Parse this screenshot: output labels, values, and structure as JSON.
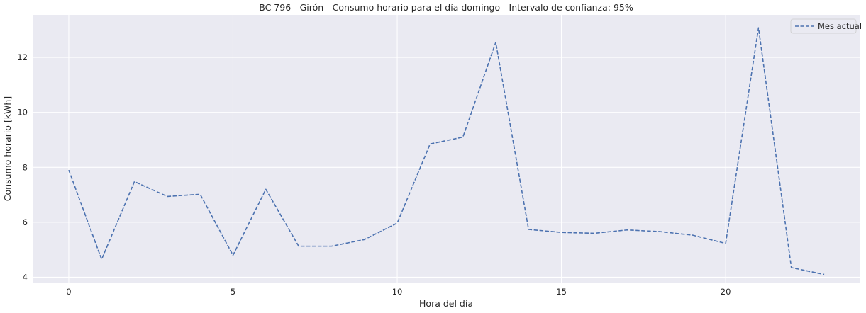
{
  "chart_data": {
    "type": "line",
    "title": "BC 796 - Girón - Consumo horario para el día domingo - Intervalo de confianza: 95%",
    "xlabel": "Hora del día",
    "ylabel": "Consumo horario [kWh]",
    "xlim": [
      -1.1,
      24.1
    ],
    "ylim": [
      3.78,
      13.55
    ],
    "xticks": [
      0,
      5,
      10,
      15,
      20
    ],
    "yticks": [
      4,
      6,
      8,
      10,
      12
    ],
    "grid": true,
    "legend_position": "top-right",
    "background_color": "#eaeaf2",
    "grid_color": "#ffffff",
    "series": [
      {
        "name": "Mes actual",
        "color": "#4c72b0",
        "line_style": "dashed",
        "x": [
          0,
          1,
          2,
          3,
          4,
          5,
          6,
          7,
          8,
          9,
          10,
          11,
          12,
          13,
          14,
          15,
          16,
          17,
          18,
          19,
          20,
          21,
          22,
          23
        ],
        "values": [
          7.9,
          4.65,
          7.48,
          6.94,
          7.02,
          4.8,
          7.2,
          5.13,
          5.13,
          5.37,
          5.97,
          8.85,
          9.1,
          12.55,
          5.74,
          5.63,
          5.6,
          5.72,
          5.66,
          5.53,
          5.23,
          13.08,
          4.35,
          4.1
        ]
      }
    ]
  }
}
